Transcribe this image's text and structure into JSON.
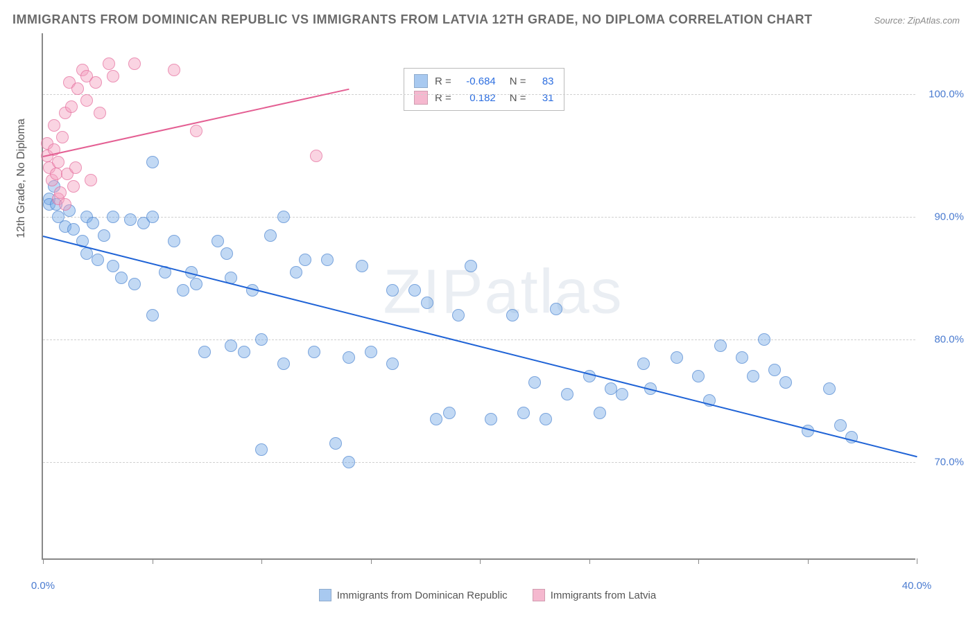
{
  "title": "IMMIGRANTS FROM DOMINICAN REPUBLIC VS IMMIGRANTS FROM LATVIA 12TH GRADE, NO DIPLOMA CORRELATION CHART",
  "source": "Source: ZipAtlas.com",
  "watermark": "ZIPatlas",
  "ylabel": "12th Grade, No Diploma",
  "chart": {
    "type": "scatter",
    "xlim": [
      0,
      40
    ],
    "ylim": [
      62,
      105
    ],
    "xticks": [
      0,
      5,
      10,
      15,
      20,
      25,
      30,
      35,
      40
    ],
    "xtick_labels": {
      "0": "0.0%",
      "40": "40.0%"
    },
    "yticks": [
      70,
      80,
      90,
      100
    ],
    "ytick_labels": {
      "70": "70.0%",
      "80": "80.0%",
      "90": "90.0%",
      "100": "100.0%"
    },
    "grid_color": "#d0d0d0",
    "background_color": "#ffffff",
    "marker_radius": 9,
    "marker_border_alpha": 0.5
  },
  "series": [
    {
      "name": "Immigrants from Dominican Republic",
      "fill": "rgba(120,170,230,0.45)",
      "stroke": "rgba(60,120,200,0.55)",
      "swatch": "#a8c9f0",
      "R": "-0.684",
      "N": "83",
      "trend": {
        "x1": 0,
        "y1": 88.5,
        "x2": 40,
        "y2": 70.5,
        "color": "#1f63d6",
        "width": 2
      },
      "points": [
        [
          0.3,
          91.5
        ],
        [
          0.3,
          91.0
        ],
        [
          0.5,
          92.5
        ],
        [
          0.6,
          91.0
        ],
        [
          0.7,
          90.0
        ],
        [
          1.2,
          90.5
        ],
        [
          1.0,
          89.2
        ],
        [
          1.4,
          89.0
        ],
        [
          1.8,
          88.0
        ],
        [
          2.0,
          90.0
        ],
        [
          2.0,
          87.0
        ],
        [
          2.3,
          89.5
        ],
        [
          2.5,
          86.5
        ],
        [
          2.8,
          88.5
        ],
        [
          3.2,
          90.0
        ],
        [
          3.2,
          86.0
        ],
        [
          3.6,
          85.0
        ],
        [
          4.0,
          89.8
        ],
        [
          4.2,
          84.5
        ],
        [
          4.6,
          89.5
        ],
        [
          5.0,
          90.0
        ],
        [
          5.0,
          94.5
        ],
        [
          5.0,
          82.0
        ],
        [
          5.6,
          85.5
        ],
        [
          6.0,
          88.0
        ],
        [
          6.4,
          84.0
        ],
        [
          6.8,
          85.5
        ],
        [
          7.0,
          84.5
        ],
        [
          7.4,
          79.0
        ],
        [
          8.0,
          88.0
        ],
        [
          8.4,
          87.0
        ],
        [
          8.6,
          85.0
        ],
        [
          8.6,
          79.5
        ],
        [
          9.2,
          79.0
        ],
        [
          9.6,
          84.0
        ],
        [
          10.0,
          80.0
        ],
        [
          10.0,
          71.0
        ],
        [
          10.4,
          88.5
        ],
        [
          11.0,
          90.0
        ],
        [
          11.0,
          78.0
        ],
        [
          11.6,
          85.5
        ],
        [
          12.0,
          86.5
        ],
        [
          12.4,
          79.0
        ],
        [
          13.0,
          86.5
        ],
        [
          13.4,
          71.5
        ],
        [
          14.0,
          78.5
        ],
        [
          14.0,
          70.0
        ],
        [
          14.6,
          86.0
        ],
        [
          15.0,
          79.0
        ],
        [
          16.0,
          78.0
        ],
        [
          16.0,
          84.0
        ],
        [
          17.0,
          84.0
        ],
        [
          17.6,
          83.0
        ],
        [
          18.0,
          73.5
        ],
        [
          18.6,
          74.0
        ],
        [
          19.0,
          82.0
        ],
        [
          19.6,
          86.0
        ],
        [
          20.5,
          73.5
        ],
        [
          21.5,
          82.0
        ],
        [
          22.0,
          74.0
        ],
        [
          22.5,
          76.5
        ],
        [
          23.0,
          73.5
        ],
        [
          23.5,
          82.5
        ],
        [
          24.0,
          75.5
        ],
        [
          25.0,
          77.0
        ],
        [
          25.5,
          74.0
        ],
        [
          26.0,
          76.0
        ],
        [
          26.5,
          75.5
        ],
        [
          27.5,
          78.0
        ],
        [
          27.8,
          76.0
        ],
        [
          29.0,
          78.5
        ],
        [
          30.0,
          77.0
        ],
        [
          30.5,
          75.0
        ],
        [
          31.0,
          79.5
        ],
        [
          32.0,
          78.5
        ],
        [
          32.5,
          77.0
        ],
        [
          33.0,
          80.0
        ],
        [
          33.5,
          77.5
        ],
        [
          34.0,
          76.5
        ],
        [
          35.0,
          72.5
        ],
        [
          36.0,
          76.0
        ],
        [
          36.5,
          73.0
        ],
        [
          37.0,
          72.0
        ]
      ]
    },
    {
      "name": "Immigrants from Latvia",
      "fill": "rgba(245,160,190,0.45)",
      "stroke": "rgba(225,100,150,0.6)",
      "swatch": "#f5b8cf",
      "R": "0.182",
      "N": "31",
      "trend": {
        "x1": 0,
        "y1": 95.0,
        "x2": 14,
        "y2": 100.5,
        "color": "#e45f93",
        "width": 2
      },
      "points": [
        [
          0.2,
          95.0
        ],
        [
          0.3,
          94.0
        ],
        [
          0.2,
          96.0
        ],
        [
          0.4,
          93.0
        ],
        [
          0.5,
          95.5
        ],
        [
          0.5,
          97.5
        ],
        [
          0.6,
          93.5
        ],
        [
          0.7,
          91.5
        ],
        [
          0.7,
          94.5
        ],
        [
          0.8,
          92.0
        ],
        [
          0.9,
          96.5
        ],
        [
          1.0,
          98.5
        ],
        [
          1.0,
          91.0
        ],
        [
          1.1,
          93.5
        ],
        [
          1.2,
          101.0
        ],
        [
          1.3,
          99.0
        ],
        [
          1.4,
          92.5
        ],
        [
          1.5,
          94.0
        ],
        [
          1.6,
          100.5
        ],
        [
          1.8,
          102.0
        ],
        [
          2.0,
          99.5
        ],
        [
          2.0,
          101.5
        ],
        [
          2.2,
          93.0
        ],
        [
          2.4,
          101.0
        ],
        [
          2.6,
          98.5
        ],
        [
          3.0,
          102.5
        ],
        [
          3.2,
          101.5
        ],
        [
          4.2,
          102.5
        ],
        [
          6.0,
          102.0
        ],
        [
          7.0,
          97.0
        ],
        [
          12.5,
          95.0
        ]
      ]
    }
  ],
  "legend_box": {
    "rows": [
      {
        "swatch": "#a8c9f0",
        "r_text": "R =",
        "r_val": "-0.684",
        "n_text": "N =",
        "n_val": "83"
      },
      {
        "swatch": "#f5b8cf",
        "r_text": "R =",
        "r_val": "0.182",
        "n_text": "N =",
        "n_val": "31"
      }
    ]
  },
  "bottom_legend": [
    {
      "swatch": "#a8c9f0",
      "label": "Immigrants from Dominican Republic"
    },
    {
      "swatch": "#f5b8cf",
      "label": "Immigrants from Latvia"
    }
  ]
}
